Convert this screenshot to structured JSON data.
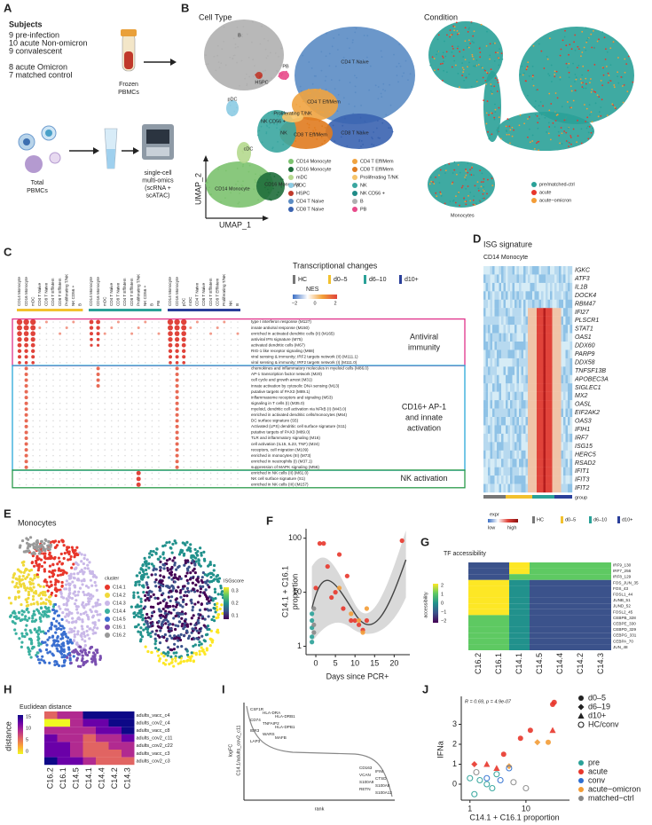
{
  "panel_labels": [
    "A",
    "B",
    "C",
    "D",
    "E",
    "F",
    "G",
    "H",
    "I",
    "J"
  ],
  "a": {
    "subjects_title": "Subjects",
    "subjects": [
      {
        "text": "9 pre-infection",
        "color": "#3aa935"
      },
      {
        "text": "10 acute Non-omicron",
        "color": "#e8362b"
      },
      {
        "text": "9 convalescent",
        "color": "#2f6fd0"
      },
      {
        "text": "8 acute Omicron",
        "color": "#f39c36"
      },
      {
        "text": "7 matched control",
        "color": "#222222"
      }
    ],
    "frozen": [
      "Frozen",
      "PBMCs"
    ],
    "total": [
      "Total",
      "PBMCs"
    ],
    "assay": [
      "single-cell",
      "multi-omics",
      "(scRNA +",
      "scATAC)"
    ]
  },
  "b": {
    "title_left": "Cell Type",
    "title_right": "Condition",
    "axis_x": "UMAP_1",
    "axis_y": "UMAP_2",
    "umap_labels": [
      "B",
      "CD4 T Naive",
      "CD4 T Eff/Mem",
      "Proliferating T/NK",
      "HSPC",
      "NK CD56 +",
      "pDC",
      "NK",
      "CD8 T Eff/Mem",
      "CD8 T Naive",
      "cDC",
      "CD14 Monocyte",
      "CD16 Monocyte",
      "PB"
    ],
    "legend": [
      {
        "name": "CD14 Monocyte",
        "color": "#7cc26f"
      },
      {
        "name": "CD16 Monocyte",
        "color": "#1f6e3b"
      },
      {
        "name": "mDC",
        "color": "#b5d98e"
      },
      {
        "name": "pDC",
        "color": "#8ccbe3"
      },
      {
        "name": "HSPC",
        "color": "#c0392b"
      },
      {
        "name": "CD4 T Naive",
        "color": "#5b8cc4"
      },
      {
        "name": "CD8 T Naive",
        "color": "#3a63b0"
      },
      {
        "name": "CD4 T Eff/Mem",
        "color": "#f0a340"
      },
      {
        "name": "CD8 T Eff/Mem",
        "color": "#e07b1f"
      },
      {
        "name": "Proliferating T/NK",
        "color": "#f6c46a"
      },
      {
        "name": "NK",
        "color": "#3aa6a0"
      },
      {
        "name": "NK CD56 +",
        "color": "#1f8b87"
      },
      {
        "name": "B",
        "color": "#b0b0b0"
      },
      {
        "name": "PB",
        "color": "#e84a8a"
      }
    ],
    "condition_legend": [
      {
        "name": "pre/matched-ctrl",
        "color": "#2aa198"
      },
      {
        "name": "acute",
        "color": "#e8362b"
      },
      {
        "name": "acute−omicron",
        "color": "#f39c36"
      }
    ],
    "monocytes_label": "Monocytes"
  },
  "c": {
    "column_groups": [
      [
        "CD14 Monocyte",
        "CD16 Monocyte",
        "mDC",
        "CD4 T Naive",
        "CD8 T Naive",
        "CD4 T Eff/Mem",
        "CD8 T Eff/Mem",
        "Proliferating T/NK",
        "NK CD56 +",
        "B"
      ],
      [
        "CD14 Monocyte",
        "CD16 Monocyte",
        "mDC",
        "CD4 T Naive",
        "CD8 T Naive",
        "CD4 T Eff/Mem",
        "CD8 T Eff/Mem",
        "Proliferating T/NK",
        "NK CD56 +",
        "B",
        "PB"
      ],
      [
        "CD14 Monocyte",
        "CD16 Monocyte",
        "pDC",
        "mDC",
        "CD4 T Naive",
        "CD8 T Naive",
        "CD4 T Eff/Mem",
        "CD8 T Eff/Mem",
        "Proliferating T/NK",
        "NK",
        "B"
      ]
    ],
    "rows": [
      "type I interferon response (M127)",
      "innate antiviral response (M150)",
      "enriched in activated dendritic cells (II) (M165)",
      "antiviral IFN signature (M75)",
      "activated dendritic cells (M67)",
      "RIG-1 like receptor signaling (M68)",
      "viral sensing & immunity; IRF2 targets network (II) (M111.1)",
      "viral sensing & immunity; IRF2 targets network (I) (M111.0)",
      "chemokines and inflammatory molecules in myeloid cells (M86.0)",
      "AP-1 transcription factor network (M20)",
      "cell cycle and growth arrest (M31)",
      "innate activation by cytosolic DNA sensing (M13)",
      "putative targets of PAX3 (M89.1)",
      "inflammasome receptors and signaling (M53)",
      "signaling in T cells (I) (M35.0)",
      "myeloid, dendritic cell activation via NFkB (I) (M43.0)",
      "enriched in activated dendritic cells/monocytes (M64)",
      "DC surface signature (S5)",
      "Activated (LPS) dendritic cell surface signature (S11)",
      "putative targets of PAX3 (M89.0)",
      "TLR and inflammatory signaling (M16)",
      "cell activation (IL15, IL23, TNF) (M24)",
      "receptors, cell migration (M109)",
      "enriched in monocytes (III) (M73)",
      "enriched in neutrophils (I) (M37.1)",
      "suppression of MAPK signaling (M56)",
      "enriched in NK cells (II) (M61.0)",
      "NK cell surface signature (S1)",
      "enriched in NK cells (III) (M157)"
    ],
    "sections": [
      {
        "lines": [
          "Antiviral",
          "immunity"
        ],
        "color": "#e0338a",
        "rows": [
          0,
          7
        ]
      },
      {
        "lines": [
          "CD16+ AP-1",
          "and innate",
          "activation"
        ],
        "color": "#2aa8d8",
        "rows": [
          8,
          25
        ]
      },
      {
        "lines": [
          "NK activation"
        ],
        "color": "#2a9a4a",
        "rows": [
          26,
          28
        ]
      }
    ],
    "legend_title": "Transcriptional changes",
    "groups": [
      {
        "name": "HC",
        "color": "#777777"
      },
      {
        "name": "d0–5",
        "color": "#f2c12e"
      },
      {
        "name": "d6–10",
        "color": "#2aa198"
      },
      {
        "name": "d10+",
        "color": "#2a3f9a"
      }
    ],
    "nes_title": "NES",
    "nes_ticks": [
      "−2",
      "0",
      "2"
    ]
  },
  "d": {
    "title": "ISG signature",
    "subtitle": "CD14 Monocyte",
    "genes": [
      "IGKC",
      "ATF3",
      "IL1B",
      "DOCK4",
      "RBM47",
      "IFI27",
      "PLSCR1",
      "STAT1",
      "OAS1",
      "DDX60",
      "PARP9",
      "DDX58",
      "TNFSF13B",
      "APOBEC3A",
      "SIGLEC1",
      "MX2",
      "OASL",
      "EIF2AK2",
      "OAS3",
      "IFIH1",
      "IRF7",
      "ISG15",
      "HERC5",
      "RSAD2",
      "IFIT1",
      "IFIT3",
      "IFIT2"
    ],
    "group_label": "group",
    "expr_title": "expr",
    "expr_low": "low",
    "expr_high": "high",
    "groups": [
      {
        "name": "HC",
        "color": "#777777"
      },
      {
        "name": "d0–5",
        "color": "#f2c12e"
      },
      {
        "name": "d6–10",
        "color": "#2aa198"
      },
      {
        "name": "d10+",
        "color": "#2a3f9a"
      }
    ]
  },
  "e": {
    "title": "Monocytes",
    "cluster_title": "cluster",
    "clusters": [
      {
        "name": "C14.1",
        "color": "#e8362b"
      },
      {
        "name": "C14.2",
        "color": "#f0d93a"
      },
      {
        "name": "C14.3",
        "color": "#c9b8e8"
      },
      {
        "name": "C14.4",
        "color": "#3ab0a0"
      },
      {
        "name": "C14.5",
        "color": "#3a6fd0"
      },
      {
        "name": "C16.1",
        "color": "#7a4fb0"
      },
      {
        "name": "C16.2",
        "color": "#999999"
      }
    ],
    "score_title": "ISGscore",
    "score_ticks": [
      "0.3",
      "0.2",
      "0.1"
    ]
  },
  "f": {
    "y_label": [
      "C14.1 + C16.1",
      "proportion"
    ],
    "x_label": "Days since PCR+",
    "xlim": [
      -2.5,
      24
    ],
    "ylim": [
      0.7,
      150
    ],
    "xticks": [
      0,
      5,
      10,
      15,
      20
    ],
    "yticks": [
      1,
      10,
      100
    ],
    "log_y": true,
    "colors": {
      "acute": "#e8362b",
      "acute−omicron": "#f39c36",
      "pre": "#2aa198",
      "matched−ctrl": "#888888"
    },
    "points": [
      {
        "x": -1,
        "y": 4,
        "group": "pre"
      },
      {
        "x": -1,
        "y": 3,
        "group": "pre"
      },
      {
        "x": -1,
        "y": 1.5,
        "group": "pre"
      },
      {
        "x": -1,
        "y": 2.2,
        "group": "pre"
      },
      {
        "x": -1,
        "y": 1.2,
        "group": "pre"
      },
      {
        "x": -0.5,
        "y": 5,
        "group": "matched−ctrl"
      },
      {
        "x": -0.5,
        "y": 2.5,
        "group": "matched−ctrl"
      },
      {
        "x": -0.5,
        "y": 1.8,
        "group": "matched−ctrl"
      },
      {
        "x": 0,
        "y": 12,
        "group": "acute"
      },
      {
        "x": 1,
        "y": 80,
        "group": "acute"
      },
      {
        "x": 2,
        "y": 80,
        "group": "acute"
      },
      {
        "x": 3,
        "y": 30,
        "group": "acute"
      },
      {
        "x": 4,
        "y": 8,
        "group": "acute"
      },
      {
        "x": 5,
        "y": 10,
        "group": "acute"
      },
      {
        "x": 6,
        "y": 50,
        "group": "acute"
      },
      {
        "x": 7,
        "y": 5,
        "group": "acute"
      },
      {
        "x": 8,
        "y": 20,
        "group": "acute"
      },
      {
        "x": 9,
        "y": 3,
        "group": "acute"
      },
      {
        "x": 10,
        "y": 3,
        "group": "acute"
      },
      {
        "x": 11,
        "y": 2.5,
        "group": "acute"
      },
      {
        "x": 12,
        "y": 2,
        "group": "acute"
      },
      {
        "x": 13,
        "y": 3,
        "group": "acute"
      },
      {
        "x": 22,
        "y": 90,
        "group": "acute"
      },
      {
        "x": 6,
        "y": 12,
        "group": "acute−omicron"
      },
      {
        "x": 9,
        "y": 4,
        "group": "acute−omicron"
      },
      {
        "x": 11,
        "y": 3,
        "group": "acute−omicron"
      },
      {
        "x": 12,
        "y": 1.8,
        "group": "acute−omicron"
      },
      {
        "x": 13,
        "y": 5,
        "group": "acute−omicron"
      }
    ]
  },
  "g": {
    "title": "TF accessibility",
    "scale_title": "accessibility",
    "scale_ticks": [
      "2",
      "1",
      "0",
      "−1",
      "−2"
    ],
    "rows": [
      "IRF9_130",
      "IRF7_256",
      "IRF8_129",
      "FOS_JUN_35",
      "FOS_43",
      "FOSL1_44",
      "JUNB_51",
      "JUND_52",
      "FOSL2_45",
      "CEBPB_328",
      "CEBPE_330",
      "CEBPD_329",
      "CEBPG_331",
      "CEBPA_70",
      "JUN_48"
    ],
    "columns": [
      "C16.2",
      "C16.1",
      "C14.1",
      "C14.5",
      "C14.4",
      "C14.2",
      "C14.3"
    ]
  },
  "h": {
    "title": "Euclidean distance",
    "scale_title": "distance",
    "scale_ticks": [
      "15",
      "10",
      "5",
      "0"
    ],
    "rows": [
      "adults_vacc_c4",
      "adults_cov2_c4",
      "adults_vacc_c8",
      "adults_cov2_c11",
      "adults_cov2_c22",
      "adults_vacc_c3",
      "adults_cov2_c3"
    ],
    "columns": [
      "C16.2",
      "C16.1",
      "C14.5",
      "C14.1",
      "C14.4",
      "C14.2",
      "C14.3"
    ]
  },
  "i": {
    "y_label": [
      "logFC",
      "C14.1/adults_cov2_c11"
    ],
    "x_label": "rank",
    "up_genes": [
      "CSF1R",
      "HLA-DRA",
      "HLA-DRB1",
      "CD74",
      "TNFAIP2",
      "HLA-DPB1",
      "IER3",
      "WARS",
      "MAFB",
      "LAP3"
    ],
    "down_genes": [
      "CD163",
      "IFIM",
      "VCAN",
      "CTSD",
      "S100A9",
      "S100A8",
      "RETN",
      "S100A12"
    ]
  },
  "j": {
    "stat": "R = 0.69, p = 4.9e-07",
    "y_label": "IFNa",
    "x_label": "C14.1 + C16.1 proportion",
    "xlim": [
      0.7,
      60
    ],
    "ylim": [
      -0.8,
      4.4
    ],
    "xticks": [
      1,
      10
    ],
    "yticks": [
      0,
      1,
      2,
      3
    ],
    "log_x": true,
    "shapes": [
      "d0–5",
      "d6–19",
      "d10+",
      "HC/conv"
    ],
    "colors": [
      {
        "name": "pre",
        "color": "#2aa198"
      },
      {
        "name": "acute",
        "color": "#e8362b"
      },
      {
        "name": "conv",
        "color": "#2f6fd0"
      },
      {
        "name": "acute−omicron",
        "color": "#f39c36"
      },
      {
        "name": "matched−ctrl",
        "color": "#888888"
      }
    ],
    "points": [
      {
        "x": 30,
        "y": 4.0,
        "group": "acute",
        "time": "d0–5"
      },
      {
        "x": 32,
        "y": 4.1,
        "group": "acute",
        "time": "d0–5"
      },
      {
        "x": 12,
        "y": 2.7,
        "group": "acute",
        "time": "d0–5"
      },
      {
        "x": 8,
        "y": 2.3,
        "group": "acute",
        "time": "d0–5"
      },
      {
        "x": 4,
        "y": 1.5,
        "group": "acute",
        "time": "d0–5"
      },
      {
        "x": 25,
        "y": 2.1,
        "group": "acute−omicron",
        "time": "d0–5"
      },
      {
        "x": 30,
        "y": 2.7,
        "group": "acute",
        "time": "d10+"
      },
      {
        "x": 2,
        "y": 1.0,
        "group": "acute",
        "time": "d10+"
      },
      {
        "x": 3,
        "y": 0.8,
        "group": "acute",
        "time": "d10+"
      },
      {
        "x": 1.2,
        "y": 1.0,
        "group": "acute",
        "time": "d6–19"
      },
      {
        "x": 16,
        "y": 2.1,
        "group": "acute−omicron",
        "time": "d6–19"
      },
      {
        "x": 5,
        "y": 0.9,
        "group": "acute−omicron",
        "time": "d6–19"
      },
      {
        "x": 1,
        "y": 0.3,
        "group": "pre",
        "time": "HC/conv"
      },
      {
        "x": 1.5,
        "y": 0.2,
        "group": "pre",
        "time": "HC/conv"
      },
      {
        "x": 2,
        "y": 0,
        "group": "pre",
        "time": "HC/conv"
      },
      {
        "x": 2.5,
        "y": -0.2,
        "group": "pre",
        "time": "HC/conv"
      },
      {
        "x": 1.2,
        "y": -0.5,
        "group": "pre",
        "time": "HC/conv"
      },
      {
        "x": 3,
        "y": 0.5,
        "group": "pre",
        "time": "HC/conv"
      },
      {
        "x": 2,
        "y": 0.3,
        "group": "conv",
        "time": "HC/conv"
      },
      {
        "x": 3.5,
        "y": 0.2,
        "group": "conv",
        "time": "HC/conv"
      },
      {
        "x": 5,
        "y": 0.8,
        "group": "conv",
        "time": "HC/conv"
      },
      {
        "x": 6,
        "y": 0.1,
        "group": "matched−ctrl",
        "time": "HC/conv"
      },
      {
        "x": 10,
        "y": -0.2,
        "group": "matched−ctrl",
        "time": "HC/conv"
      },
      {
        "x": 1.3,
        "y": 0.6,
        "group": "matched−ctrl",
        "time": "HC/conv"
      }
    ]
  }
}
